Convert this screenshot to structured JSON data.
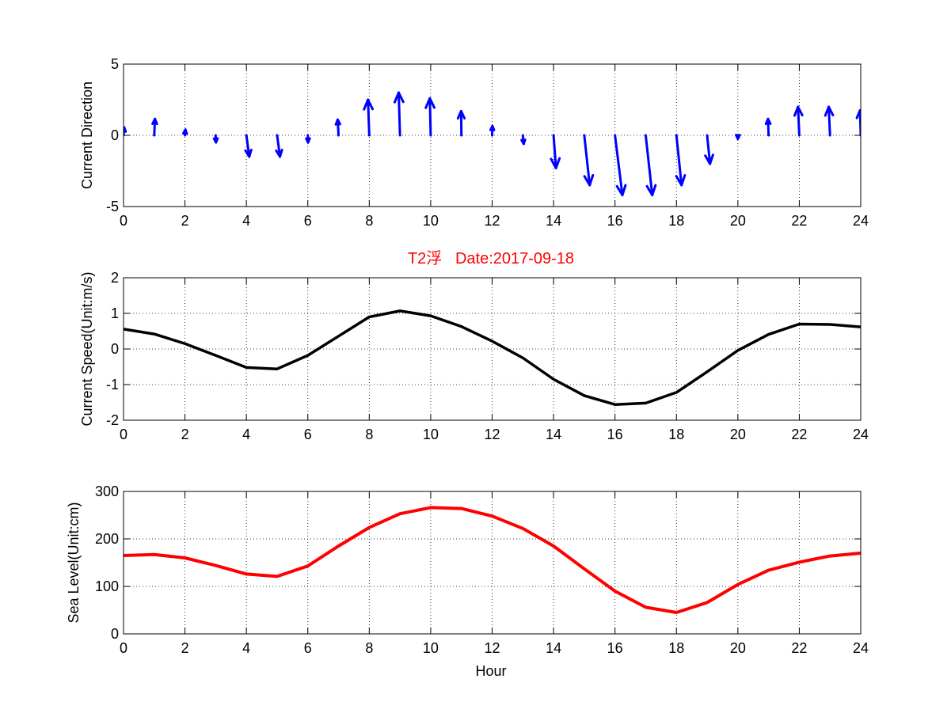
{
  "title": "T2浮   Date:2017-09-18",
  "colors": {
    "direction": "#0000ff",
    "speed": "#000000",
    "level": "#ff0000",
    "title": "#ff0000"
  },
  "chart_data": [
    {
      "type": "quiver",
      "ylabel": "Current Direction",
      "xlim": [
        0,
        24
      ],
      "ylim": [
        -5,
        5
      ],
      "xticks": [
        0,
        2,
        4,
        6,
        8,
        10,
        12,
        14,
        16,
        18,
        20,
        22,
        24
      ],
      "yticks": [
        -5,
        0,
        5
      ],
      "grid": true,
      "x": [
        0,
        1,
        2,
        3,
        4,
        5,
        6,
        7,
        8,
        9,
        10,
        11,
        12,
        13,
        14,
        15,
        16,
        17,
        18,
        19,
        20,
        21,
        22,
        23,
        24
      ],
      "u": [
        0.05,
        0.05,
        0.03,
        0.02,
        0.2,
        0.2,
        0.02,
        -0.06,
        -0.09,
        -0.09,
        -0.06,
        -0.02,
        0.02,
        0.06,
        0.17,
        0.38,
        0.52,
        0.46,
        0.36,
        0.2,
        0.0,
        -0.04,
        -0.09,
        -0.09,
        -0.05
      ],
      "v": [
        0.55,
        1.15,
        0.4,
        -0.5,
        -1.5,
        -1.5,
        -0.5,
        1.1,
        2.5,
        3.0,
        2.6,
        1.7,
        0.65,
        -0.6,
        -2.3,
        -3.5,
        -4.2,
        -4.2,
        -3.5,
        -2.0,
        -0.25,
        1.15,
        2.0,
        2.0,
        1.75
      ]
    },
    {
      "type": "line",
      "ylabel": "Current Speed(Unit:m/s)",
      "xlim": [
        0,
        24
      ],
      "ylim": [
        -2,
        2
      ],
      "xticks": [
        0,
        2,
        4,
        6,
        8,
        10,
        12,
        14,
        16,
        18,
        20,
        22,
        24
      ],
      "yticks": [
        -2,
        -1,
        0,
        1,
        2
      ],
      "grid": true,
      "x": [
        0,
        1,
        2,
        3,
        4,
        5,
        6,
        7,
        8,
        9,
        10,
        11,
        12,
        13,
        14,
        15,
        16,
        17,
        18,
        19,
        20,
        21,
        22,
        23,
        24
      ],
      "values": [
        0.56,
        0.42,
        0.15,
        -0.18,
        -0.52,
        -0.56,
        -0.18,
        0.36,
        0.9,
        1.07,
        0.93,
        0.63,
        0.22,
        -0.25,
        -0.85,
        -1.31,
        -1.56,
        -1.52,
        -1.22,
        -0.64,
        -0.04,
        0.41,
        0.7,
        0.69,
        0.62
      ]
    },
    {
      "type": "line",
      "ylabel": "Sea Level(Unit:cm)",
      "xlabel": "Hour",
      "xlim": [
        0,
        24
      ],
      "ylim": [
        0,
        300
      ],
      "xticks": [
        0,
        2,
        4,
        6,
        8,
        10,
        12,
        14,
        16,
        18,
        20,
        22,
        24
      ],
      "yticks": [
        0,
        100,
        200,
        300
      ],
      "grid": true,
      "x": [
        0,
        1,
        2,
        3,
        4,
        5,
        6,
        7,
        8,
        9,
        10,
        11,
        12,
        13,
        14,
        15,
        16,
        17,
        18,
        19,
        20,
        21,
        22,
        23,
        24
      ],
      "values": [
        165,
        167,
        160,
        144,
        126,
        121,
        143,
        185,
        224,
        253,
        266,
        264,
        248,
        222,
        185,
        137,
        90,
        56,
        45,
        66,
        104,
        134,
        151,
        164,
        170
      ]
    }
  ]
}
